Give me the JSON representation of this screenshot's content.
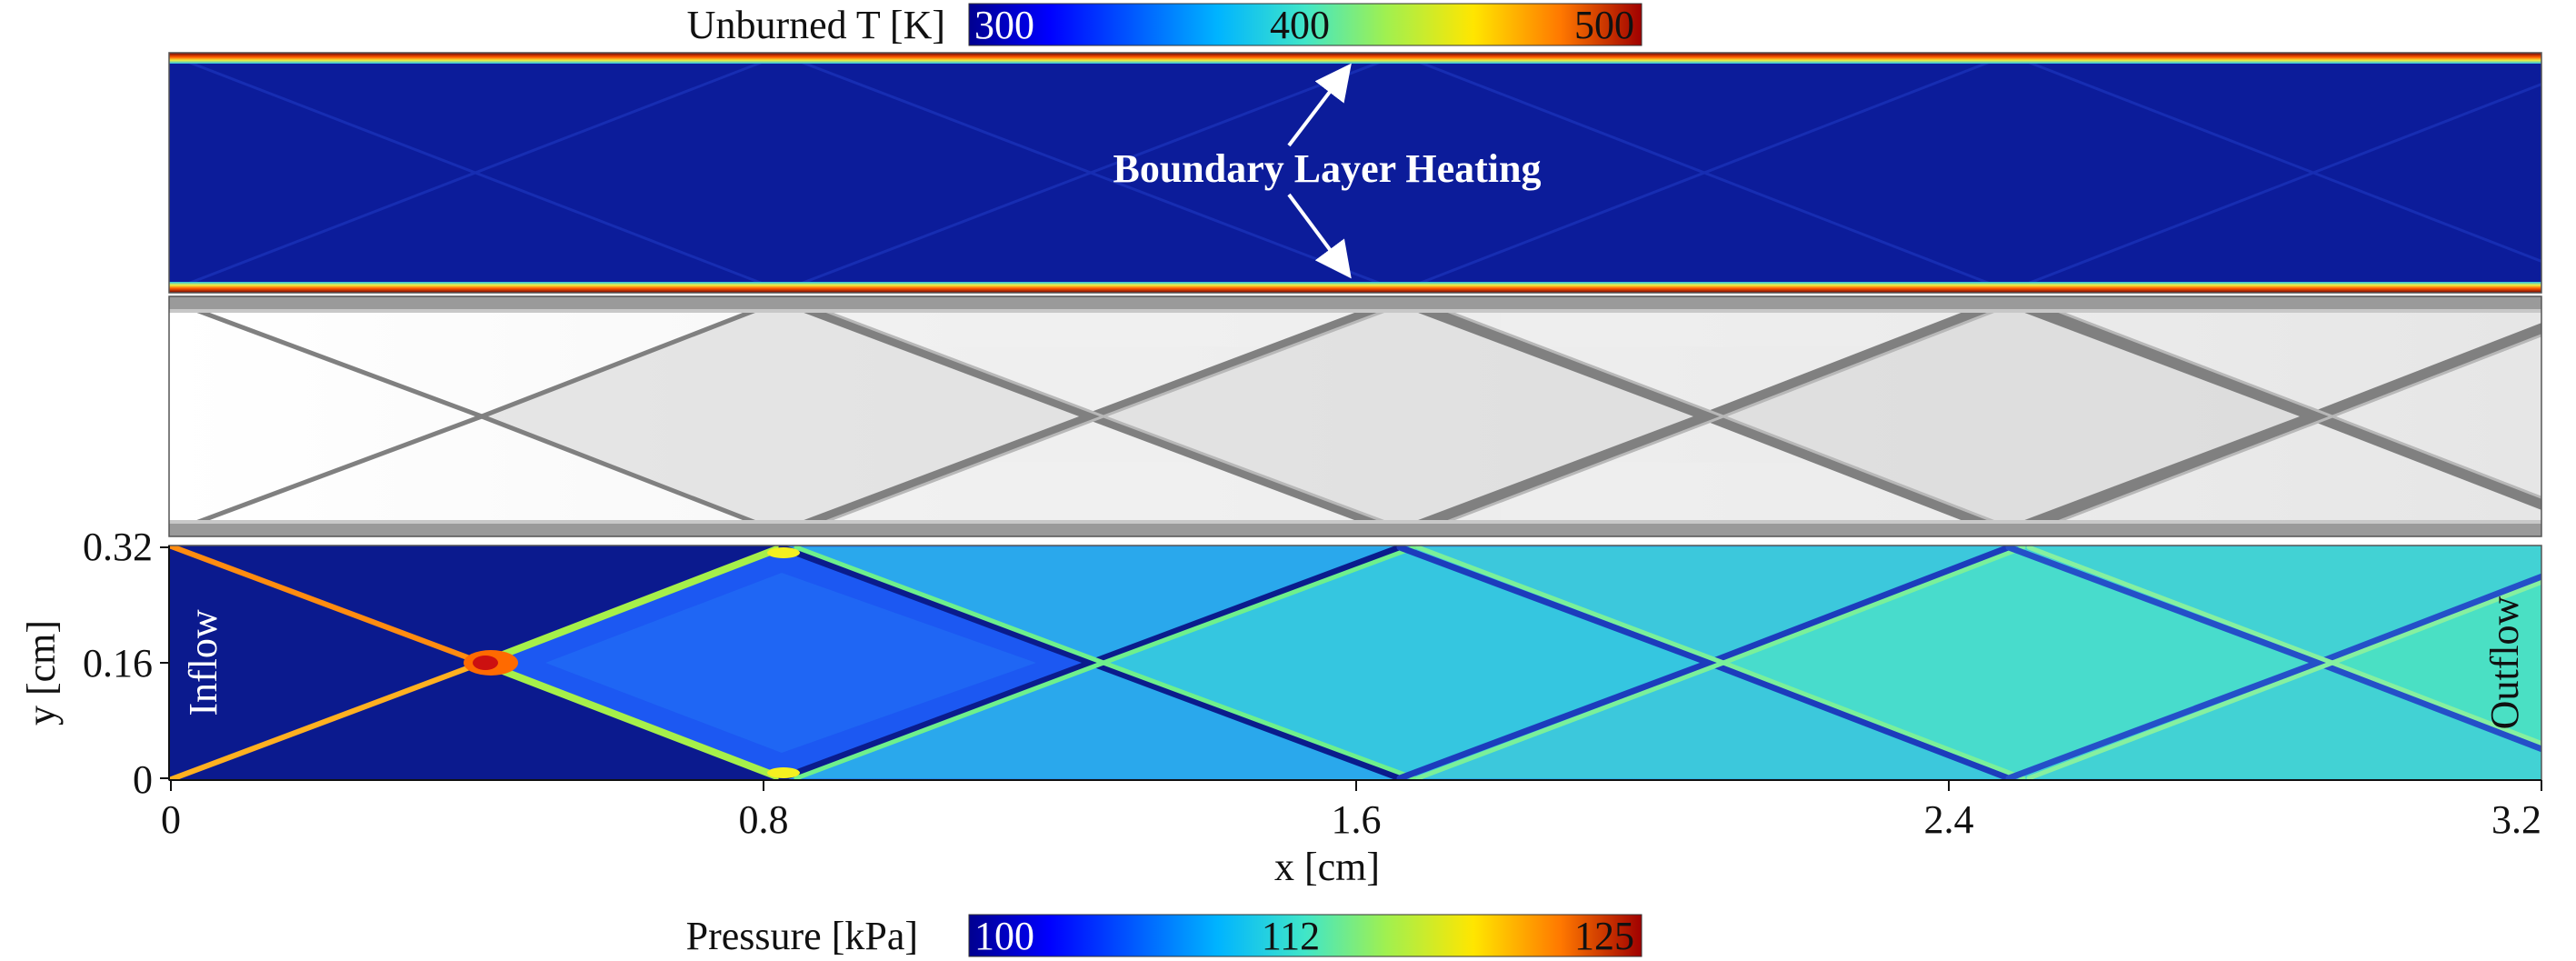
{
  "figure": {
    "top_colorbar": {
      "title": "Unburned T [K]",
      "ticks": [
        "300",
        "400",
        "500"
      ]
    },
    "annotation": {
      "text": "Boundary Layer Heating"
    },
    "bottom_panel": {
      "inflow_label": "Inflow",
      "outflow_label": "Outflow"
    },
    "x_axis": {
      "label": "x [cm]",
      "ticks": [
        "0",
        "0.8",
        "1.6",
        "2.4",
        "3.2"
      ],
      "range": [
        0,
        3.2
      ]
    },
    "y_axis": {
      "label": "y [cm]",
      "ticks": [
        "0",
        "0.16",
        "0.32"
      ],
      "range": [
        0,
        0.32
      ]
    },
    "bottom_colorbar": {
      "title": "Pressure [kPa]",
      "ticks": [
        "100",
        "112",
        "125"
      ]
    },
    "colors": {
      "deep_blue": "#0a1a8c",
      "field_blue": "#1446e6",
      "cyan": "#22c8e6",
      "green": "#7ef07a",
      "yellow": "#f4f020",
      "orange": "#f08010",
      "red": "#cc1010",
      "dark_red": "#8a0000"
    }
  }
}
